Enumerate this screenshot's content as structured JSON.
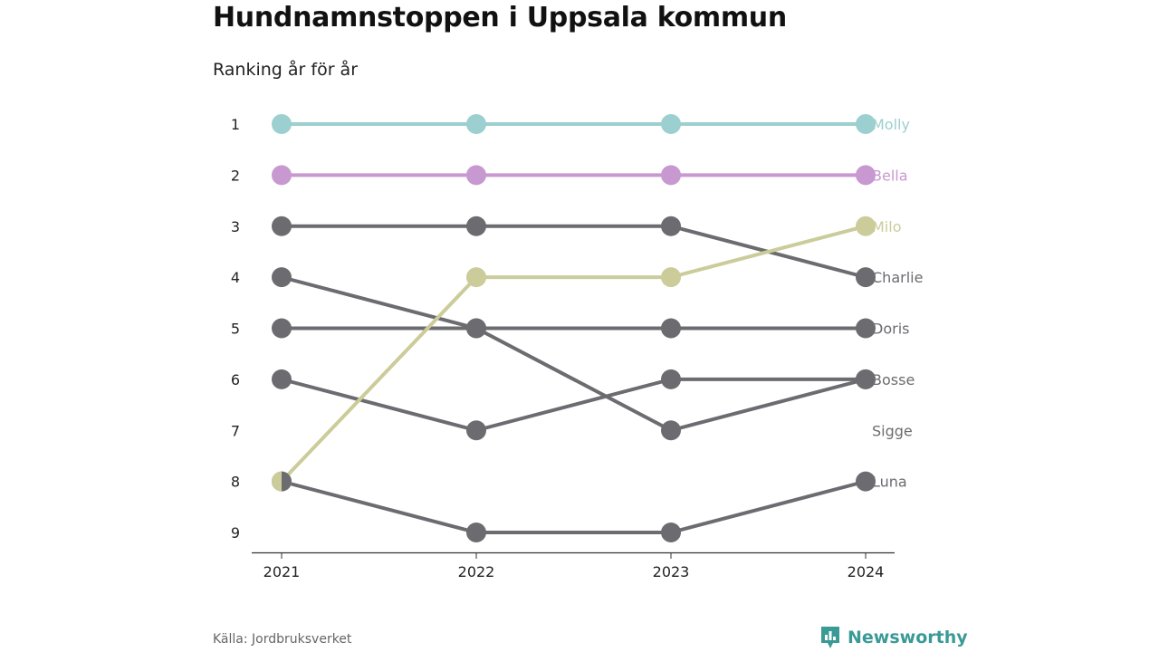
{
  "header": {
    "title": "Hundnamnstoppen i Uppsala kommun",
    "subtitle": "Ranking år för år"
  },
  "footer": {
    "source": "Källa: Jordbruksverket",
    "brand": "Newsworthy",
    "brand_icon": "bar-chart-pin-icon"
  },
  "colors": {
    "teal": "#9ccfcf",
    "purple": "#c898d0",
    "olive": "#cbcc9a",
    "gray": "#6c6b70",
    "axis": "#333333",
    "brand": "#3a9a96"
  },
  "chart_data": {
    "type": "line",
    "subtype": "bump",
    "x": [
      "2021",
      "2022",
      "2023",
      "2024"
    ],
    "y_ticks": [
      1,
      2,
      3,
      4,
      5,
      6,
      7,
      8,
      9
    ],
    "ylim": [
      1,
      9
    ],
    "y_inverted": true,
    "grid": false,
    "series": [
      {
        "name": "Molly",
        "color": "#9ccfcf",
        "values": [
          1,
          1,
          1,
          1
        ]
      },
      {
        "name": "Bella",
        "color": "#c898d0",
        "values": [
          2,
          2,
          2,
          2
        ]
      },
      {
        "name": "Milo",
        "color": "#cbcc9a",
        "values": [
          8,
          4,
          4,
          3
        ]
      },
      {
        "name": "Charlie",
        "color": "#6c6b70",
        "values": [
          3,
          3,
          3,
          4
        ]
      },
      {
        "name": "Doris",
        "color": "#6c6b70",
        "values": [
          5,
          5,
          5,
          5
        ]
      },
      {
        "name": "Bosse",
        "color": "#6c6b70",
        "values": [
          6,
          7,
          6,
          6
        ]
      },
      {
        "name": "Sigge",
        "color": "#6c6b70",
        "values": [
          4,
          5,
          7,
          6
        ]
      },
      {
        "name": "Luna",
        "color": "#6c6b70",
        "values": [
          8,
          9,
          9,
          8
        ]
      }
    ],
    "end_labels": [
      {
        "text": "Molly",
        "rank": 1,
        "color": "#9ccfcf"
      },
      {
        "text": "Bella",
        "rank": 2,
        "color": "#c898d0"
      },
      {
        "text": "Milo",
        "rank": 3,
        "color": "#cbcc9a"
      },
      {
        "text": "Charlie",
        "rank": 4,
        "color": "#6c6b70"
      },
      {
        "text": "Doris",
        "rank": 5,
        "color": "#6c6b70"
      },
      {
        "text": "Bosse",
        "rank": 6,
        "color": "#6c6b70"
      },
      {
        "text": "Sigge",
        "rank": 7,
        "color": "#6c6b70"
      },
      {
        "text": "Luna",
        "rank": 8,
        "color": "#6c6b70"
      }
    ],
    "half_marker": {
      "x": "2021",
      "rank": 8,
      "left_color": "#cbcc9a",
      "right_color": "#6c6b70"
    }
  }
}
